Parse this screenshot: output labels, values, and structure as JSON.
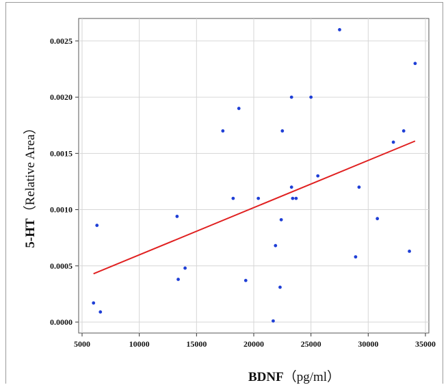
{
  "chart_data": {
    "type": "scatter",
    "xlabel": {
      "bold": "BDNF",
      "rest": "（pg/ml）"
    },
    "ylabel": {
      "bold": "5-HT",
      "rest": "（Relative Area）"
    },
    "xlim": [
      5000,
      35000
    ],
    "ylim": [
      0.0,
      0.0027
    ],
    "x_ticks": [
      5000,
      10000,
      15000,
      20000,
      25000,
      30000,
      35000
    ],
    "x_tick_labels": [
      "5000",
      "10000",
      "15000",
      "20000",
      "25000",
      "30000",
      "35000"
    ],
    "y_ticks": [
      0.0,
      0.0005,
      0.001,
      0.0015,
      0.002,
      0.0025
    ],
    "y_tick_labels": [
      "0.0000",
      "0.0005",
      "0.0010",
      "0.0015",
      "0.0020",
      "0.0025"
    ],
    "grid": true,
    "point_color": "#1f3fd6",
    "line_color": "#e02020",
    "points": [
      {
        "x": 6000,
        "y": 0.00017
      },
      {
        "x": 6300,
        "y": 0.00086
      },
      {
        "x": 6600,
        "y": 9e-05
      },
      {
        "x": 13300,
        "y": 0.00094
      },
      {
        "x": 13400,
        "y": 0.00038
      },
      {
        "x": 14000,
        "y": 0.00048
      },
      {
        "x": 17300,
        "y": 0.0017
      },
      {
        "x": 18200,
        "y": 0.0011
      },
      {
        "x": 18700,
        "y": 0.0019
      },
      {
        "x": 19300,
        "y": 0.00037
      },
      {
        "x": 20400,
        "y": 0.0011
      },
      {
        "x": 21700,
        "y": 1e-05
      },
      {
        "x": 21900,
        "y": 0.00068
      },
      {
        "x": 22300,
        "y": 0.00031
      },
      {
        "x": 22400,
        "y": 0.00091
      },
      {
        "x": 22500,
        "y": 0.0017
      },
      {
        "x": 23300,
        "y": 0.0012
      },
      {
        "x": 23300,
        "y": 0.002
      },
      {
        "x": 23400,
        "y": 0.0011
      },
      {
        "x": 23700,
        "y": 0.0011
      },
      {
        "x": 25000,
        "y": 0.002
      },
      {
        "x": 25600,
        "y": 0.0013
      },
      {
        "x": 27500,
        "y": 0.0026
      },
      {
        "x": 28900,
        "y": 0.00058
      },
      {
        "x": 29200,
        "y": 0.0012
      },
      {
        "x": 30800,
        "y": 0.00092
      },
      {
        "x": 32200,
        "y": 0.0016
      },
      {
        "x": 33100,
        "y": 0.0017
      },
      {
        "x": 33600,
        "y": 0.00063
      },
      {
        "x": 34100,
        "y": 0.0023
      }
    ],
    "fit_line": {
      "x": [
        6000,
        34100
      ],
      "y": [
        0.00043,
        0.00161
      ]
    }
  }
}
